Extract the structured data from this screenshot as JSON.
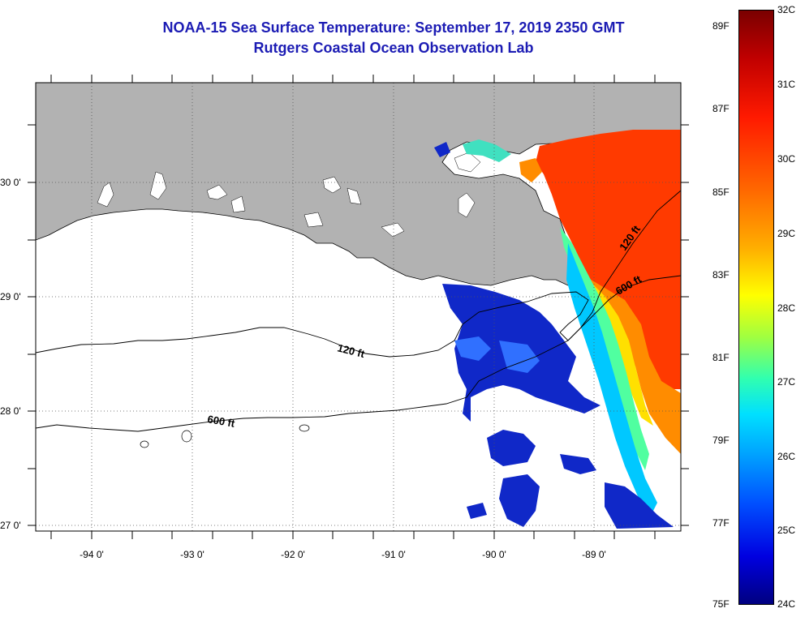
{
  "title": {
    "line1": "NOAA-15 Sea Surface Temperature:  September 17, 2019 2350 GMT",
    "line2": "Rutgers Coastal Ocean Observation Lab"
  },
  "map": {
    "lat_labels": [
      "30 0'",
      "29 0'",
      "28 0'",
      "27 0'"
    ],
    "lon_labels": [
      "-94 0'",
      "-93 0'",
      "-92 0'",
      "-91 0'",
      "-90 0'",
      "-89 0'"
    ],
    "isobath_labels": {
      "west_120": "120 ft",
      "west_600": "600 ft",
      "east_120": "120 ft",
      "east_600": "600 ft"
    },
    "colors": {
      "land": "#b2b2b2",
      "water_no_data": "#ffffff",
      "gridline": "#555555"
    }
  },
  "colorbar": {
    "celsius": [
      "32C",
      "31C",
      "30C",
      "29C",
      "28C",
      "27C",
      "26C",
      "25C",
      "24C"
    ],
    "fahrenheit": [
      "89F",
      "87F",
      "85F",
      "83F",
      "81F",
      "79F",
      "77F",
      "75F"
    ]
  }
}
